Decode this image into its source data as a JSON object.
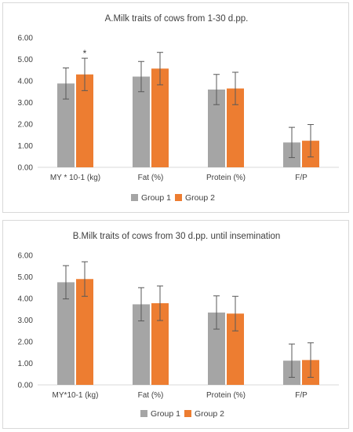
{
  "chart_data": [
    {
      "type": "bar",
      "title": "A.Milk traits of cows from 1-30 d.pp.",
      "categories": [
        "MY * 10-1 (kg)",
        "Fat (%)",
        "Protein (%)",
        "F/P"
      ],
      "ylim": [
        0,
        6
      ],
      "yticks": [
        "0.00",
        "1.00",
        "2.00",
        "3.00",
        "4.00",
        "5.00",
        "6.00"
      ],
      "grid": false,
      "legend_position": "bottom",
      "series": [
        {
          "name": "Group 1",
          "color": "#a5a5a5",
          "values": [
            3.88,
            4.2,
            3.6,
            1.15
          ],
          "errors": [
            0.72,
            0.7,
            0.7,
            0.7
          ]
        },
        {
          "name": "Group 2",
          "color": "#ed7d31",
          "values": [
            4.3,
            4.57,
            3.65,
            1.23
          ],
          "errors": [
            0.75,
            0.75,
            0.75,
            0.75
          ]
        }
      ],
      "annotations": [
        {
          "text": "*",
          "category": 0,
          "series": 1
        }
      ]
    },
    {
      "type": "bar",
      "title": "B.Milk traits of cows from 30 d.pp. until insemination",
      "categories": [
        "MY*10-1 (kg)",
        "Fat (%)",
        "Protein (%)",
        "F/P"
      ],
      "ylim": [
        0,
        6
      ],
      "yticks": [
        "0.00",
        "1.00",
        "2.00",
        "3.00",
        "4.00",
        "5.00",
        "6.00"
      ],
      "grid": false,
      "legend_position": "bottom",
      "series": [
        {
          "name": "Group 1",
          "color": "#a5a5a5",
          "values": [
            4.75,
            3.73,
            3.35,
            1.12
          ],
          "errors": [
            0.77,
            0.77,
            0.77,
            0.77
          ]
        },
        {
          "name": "Group 2",
          "color": "#ed7d31",
          "values": [
            4.9,
            3.78,
            3.3,
            1.15
          ],
          "errors": [
            0.8,
            0.8,
            0.8,
            0.8
          ]
        }
      ],
      "annotations": []
    }
  ]
}
